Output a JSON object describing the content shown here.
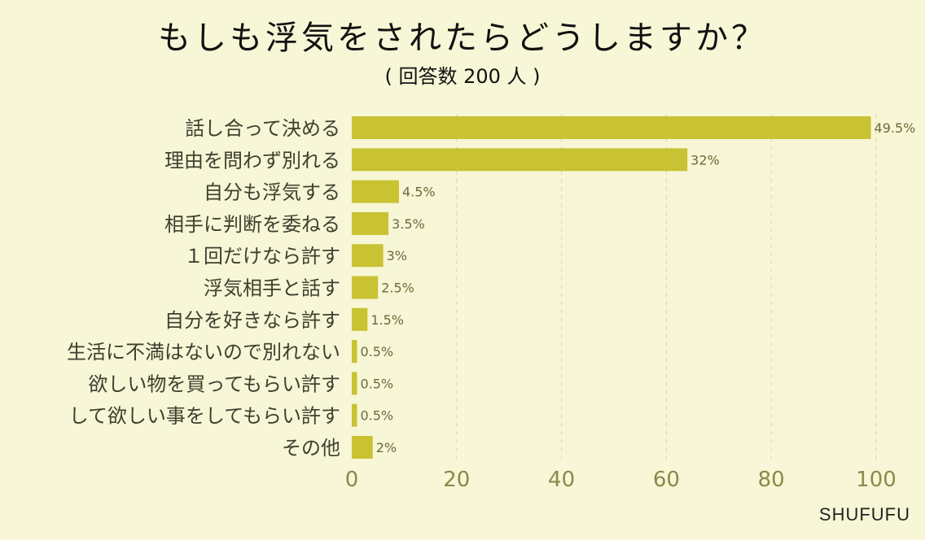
{
  "header": {
    "title": "もしも浮気をされたらどうしますか？",
    "subtitle": "( 回答数 200 人 )"
  },
  "brand": "SHUFUFU",
  "colors": {
    "background": "#f7f6d6",
    "bar": "#c9c232",
    "grid": "#d8d7b8"
  },
  "chart_data": {
    "type": "bar",
    "orientation": "horizontal",
    "title": "もしも浮気をされたらどうしますか？",
    "subtitle": "( 回答数 200 人 )",
    "categories": [
      "話し合って決める",
      "理由を問わず別れる",
      "自分も浮気する",
      "相手に判断を委ねる",
      "１回だけなら許す",
      "浮気相手と話す",
      "自分を好きなら許す",
      "生活に不満はないので別れない",
      "欲しい物を買ってもらい許す",
      "して欲しい事をしてもらい許す",
      "その他"
    ],
    "values": [
      49.5,
      32,
      4.5,
      3.5,
      3,
      2.5,
      1.5,
      0.5,
      0.5,
      0.5,
      2
    ],
    "value_labels": [
      "49.5%",
      "32%",
      "4.5%",
      "3.5%",
      "3%",
      "2.5%",
      "1.5%",
      "0.5%",
      "0.5%",
      "0.5%",
      "2%"
    ],
    "xlim": [
      0,
      50
    ],
    "x_ticks": [
      0,
      10,
      20,
      30,
      40,
      50
    ],
    "x_tick_labels": [
      "0",
      "20",
      "40",
      "60",
      "80",
      "100"
    ],
    "xlabel": "",
    "ylabel": "",
    "grid": true,
    "legend": "none"
  }
}
